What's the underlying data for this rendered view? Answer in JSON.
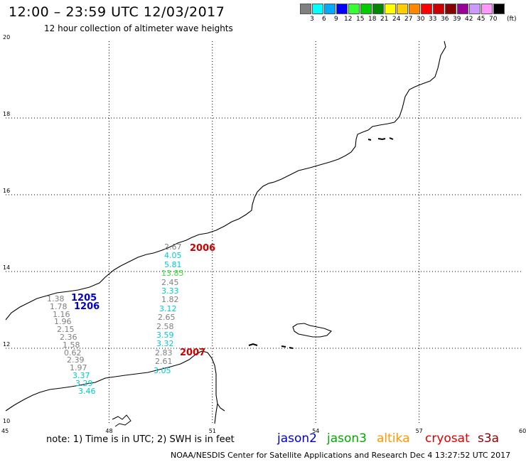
{
  "header": {
    "title": "12:00 – 23:59 UTC 12/03/2017",
    "subtitle": "12 hour collection of altimeter wave heights"
  },
  "color_scale": {
    "unit": "(ft)",
    "bins": [
      {
        "label": "3",
        "color": "#808080"
      },
      {
        "label": "6",
        "color": "#00ffff"
      },
      {
        "label": "9",
        "color": "#00aaff"
      },
      {
        "label": "12",
        "color": "#0000ff"
      },
      {
        "label": "15",
        "color": "#33ff33"
      },
      {
        "label": "18",
        "color": "#00cc00"
      },
      {
        "label": "21",
        "color": "#008800"
      },
      {
        "label": "24",
        "color": "#ffff00"
      },
      {
        "label": "27",
        "color": "#ffcc00"
      },
      {
        "label": "30",
        "color": "#ff8800"
      },
      {
        "label": "33",
        "color": "#ff0000"
      },
      {
        "label": "36",
        "color": "#cc0000"
      },
      {
        "label": "39",
        "color": "#880000"
      },
      {
        "label": "42",
        "color": "#990099"
      },
      {
        "label": "45",
        "color": "#cc99ff"
      },
      {
        "label": "70",
        "color": "#ff99ff"
      },
      {
        "label": "",
        "color": "#000000"
      }
    ]
  },
  "axes": {
    "lat_labels": [
      "20",
      "18",
      "16",
      "14",
      "12",
      "10"
    ],
    "lon_labels": [
      "45",
      "48",
      "51",
      "54",
      "57",
      "60"
    ]
  },
  "passes": [
    {
      "label": "2006",
      "color": "#cc0000"
    },
    {
      "label": "2007",
      "color": "#cc0000"
    },
    {
      "label": "1205",
      "color": "#0000cc"
    },
    {
      "label": "1206",
      "color": "#0000cc"
    }
  ],
  "track_east": [
    {
      "value": "2.67",
      "color": "#808080"
    },
    {
      "value": "4.05",
      "color": "#00cccc"
    },
    {
      "value": "5.81",
      "color": "#00cccc"
    },
    {
      "value": "13.85",
      "color": "#33dd33"
    },
    {
      "value": "2.45",
      "color": "#808080"
    },
    {
      "value": "3.33",
      "color": "#00cccc"
    },
    {
      "value": "1.82",
      "color": "#808080"
    },
    {
      "value": "3.12",
      "color": "#00cccc"
    },
    {
      "value": "2.65",
      "color": "#808080"
    },
    {
      "value": "2.58",
      "color": "#808080"
    },
    {
      "value": "3.59",
      "color": "#00cccc"
    },
    {
      "value": "3.32",
      "color": "#00cccc"
    },
    {
      "value": "2.83",
      "color": "#808080"
    },
    {
      "value": "2.61",
      "color": "#808080"
    },
    {
      "value": "3.05",
      "color": "#00cccc"
    }
  ],
  "track_west": [
    {
      "value": "1.38",
      "color": "#808080"
    },
    {
      "value": "1.78",
      "color": "#808080"
    },
    {
      "value": "1.16",
      "color": "#808080"
    },
    {
      "value": "1.96",
      "color": "#808080"
    },
    {
      "value": "2.15",
      "color": "#808080"
    },
    {
      "value": "2.36",
      "color": "#808080"
    },
    {
      "value": "1.58",
      "color": "#808080"
    },
    {
      "value": "0.62",
      "color": "#808080"
    },
    {
      "value": "2.39",
      "color": "#808080"
    },
    {
      "value": "1.97",
      "color": "#808080"
    },
    {
      "value": "3.37",
      "color": "#00cccc"
    },
    {
      "value": "3.29",
      "color": "#00cccc"
    },
    {
      "value": "3.46",
      "color": "#00cccc"
    }
  ],
  "footer": {
    "note": "note:  1) Time is in UTC;  2) SWH is in feet",
    "legend": [
      {
        "name": "jason2",
        "color": "#0000cc"
      },
      {
        "name": "jason3",
        "color": "#00aa00"
      },
      {
        "name": "altika",
        "color": "#ff9900"
      },
      {
        "name": "cryosat",
        "color": "#dd0000"
      },
      {
        "name": "s3a",
        "color": "#880000"
      }
    ],
    "credit": "NOAA/NESDIS Center for Satellite Applications and Research     Dec  4 13:27:52 UTC 2017"
  }
}
